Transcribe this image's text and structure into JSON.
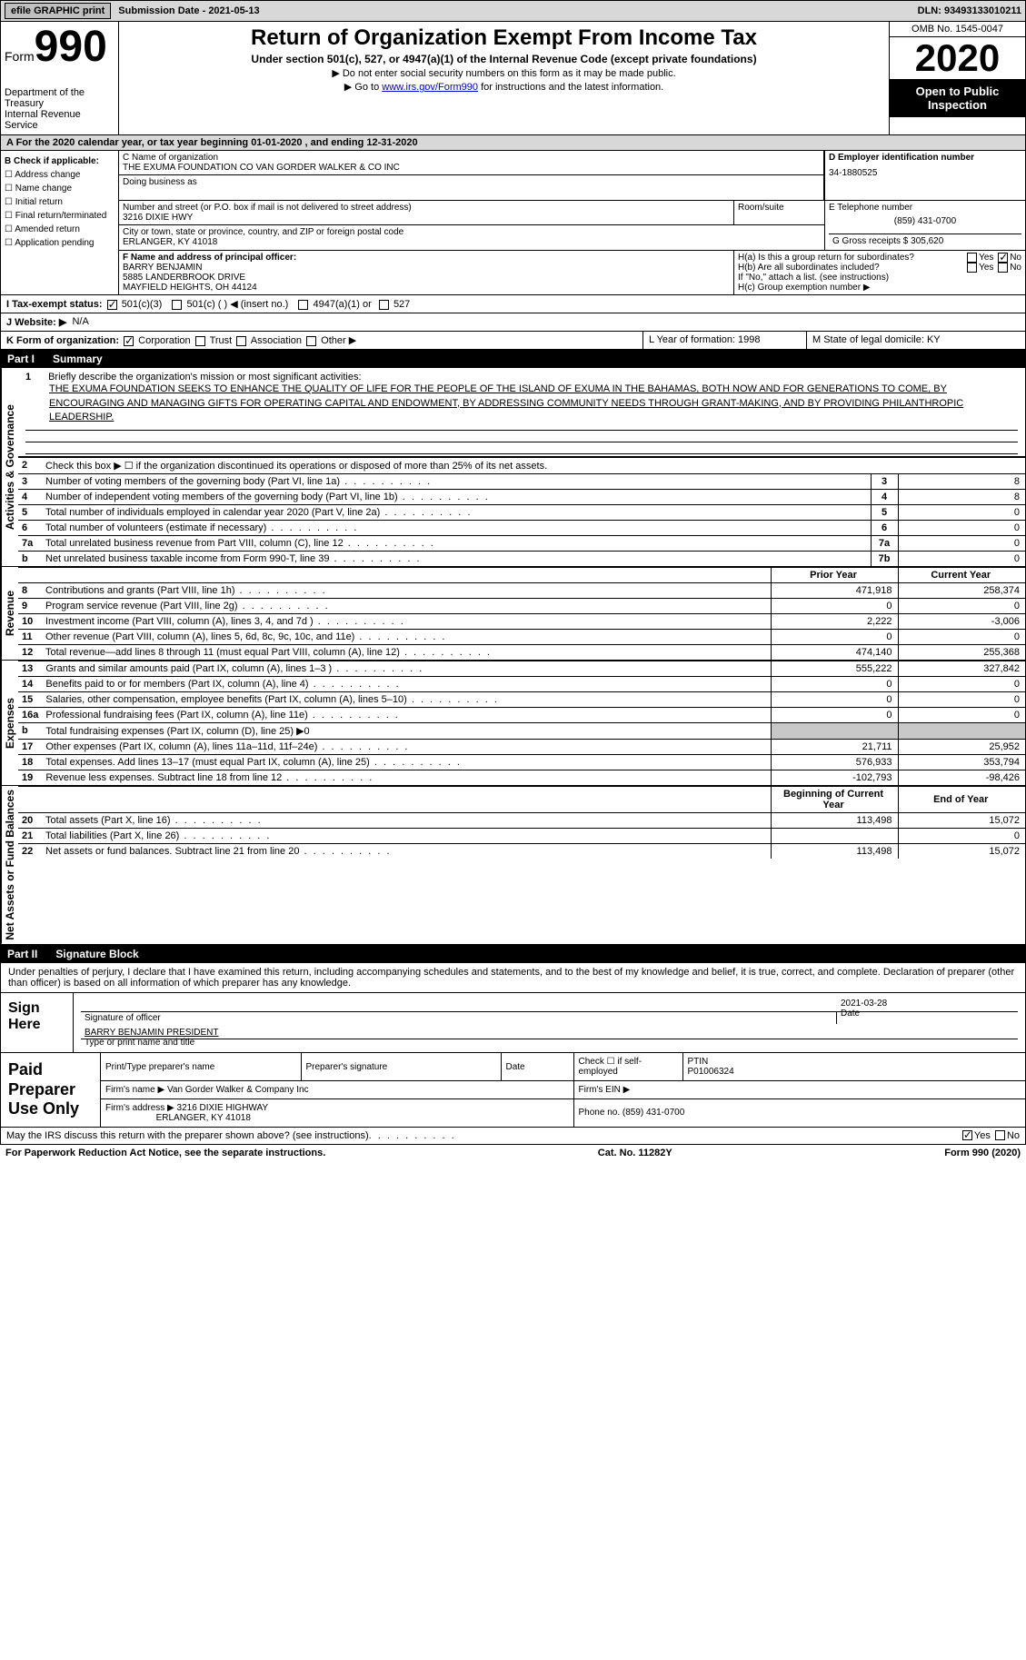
{
  "topbar": {
    "efile_label": "efile GRAPHIC print",
    "submission_label": "Submission Date - 2021-05-13",
    "dln": "DLN: 93493133010211"
  },
  "header": {
    "form_word": "Form",
    "form_num": "990",
    "dept1": "Department of the Treasury",
    "dept2": "Internal Revenue Service",
    "title": "Return of Organization Exempt From Income Tax",
    "sub": "Under section 501(c), 527, or 4947(a)(1) of the Internal Revenue Code (except private foundations)",
    "note1": "▶ Do not enter social security numbers on this form as it may be made public.",
    "note2_pre": "▶ Go to ",
    "note2_link": "www.irs.gov/Form990",
    "note2_post": " for instructions and the latest information.",
    "omb": "OMB No. 1545-0047",
    "year": "2020",
    "inspect1": "Open to Public",
    "inspect2": "Inspection"
  },
  "period": "A For the 2020 calendar year, or tax year beginning 01-01-2020   , and ending 12-31-2020",
  "sectionB": {
    "heading": "B Check if applicable:",
    "items": [
      "☐ Address change",
      "☐ Name change",
      "☐ Initial return",
      "☐ Final return/terminated",
      "☐ Amended return",
      "☐ Application pending"
    ]
  },
  "sectionC": {
    "label": "C Name of organization",
    "name": "THE EXUMA FOUNDATION CO VAN GORDER WALKER & CO INC",
    "dba_label": "Doing business as",
    "street_label": "Number and street (or P.O. box if mail is not delivered to street address)",
    "street": "3216 DIXIE HWY",
    "room_label": "Room/suite",
    "city_label": "City or town, state or province, country, and ZIP or foreign postal code",
    "city": "ERLANGER, KY  41018"
  },
  "sectionD": {
    "label": "D Employer identification number",
    "ein": "34-1880525"
  },
  "sectionE": {
    "label": "E Telephone number",
    "phone": "(859) 431-0700"
  },
  "sectionG": {
    "label": "G Gross receipts $ 305,620"
  },
  "sectionF": {
    "label": "F  Name and address of principal officer:",
    "name": "BARRY BENJAMIN",
    "addr1": "5885 LANDERBROOK DRIVE",
    "addr2": "MAYFIELD HEIGHTS, OH  44124"
  },
  "sectionH": {
    "ha": "H(a)  Is this a group return for subordinates?",
    "hb": "H(b)  Are all subordinates included?",
    "hnote": "If \"No,\" attach a list. (see instructions)",
    "hc": "H(c)  Group exemption number ▶",
    "yes": "Yes",
    "no": "No"
  },
  "rowI": {
    "label": "I   Tax-exempt status:",
    "opts": [
      "501(c)(3)",
      "501(c) (  ) ◀ (insert no.)",
      "4947(a)(1) or",
      "527"
    ]
  },
  "rowJ": {
    "label": "J   Website: ▶",
    "val": "N/A"
  },
  "rowK": {
    "left_label": "K Form of organization:",
    "opts": [
      "Corporation",
      "Trust",
      "Association",
      "Other ▶"
    ],
    "mid": "L Year of formation: 1998",
    "right": "M State of legal domicile: KY"
  },
  "part1": {
    "num": "Part I",
    "title": "Summary"
  },
  "summary": {
    "line1_num": "1",
    "line1_label": "Briefly describe the organization's mission or most significant activities:",
    "mission": "THE EXUMA FOUNDATION SEEKS TO ENHANCE THE QUALITY OF LIFE FOR THE PEOPLE OF THE ISLAND OF EXUMA IN THE BAHAMAS, BOTH NOW AND FOR GENERATIONS TO COME, BY ENCOURAGING AND MANAGING GIFTS FOR OPERATING CAPITAL AND ENDOWMENT, BY ADDRESSING COMMUNITY NEEDS THROUGH GRANT-MAKING, AND BY PROVIDING PHILANTHROPIC LEADERSHIP.",
    "line2": "Check this box ▶ ☐  if the organization discontinued its operations or disposed of more than 25% of its net assets.",
    "gov_rows": [
      {
        "n": "3",
        "label": "Number of voting members of the governing body (Part VI, line 1a)",
        "box": "3",
        "val": "8"
      },
      {
        "n": "4",
        "label": "Number of independent voting members of the governing body (Part VI, line 1b)",
        "box": "4",
        "val": "8"
      },
      {
        "n": "5",
        "label": "Total number of individuals employed in calendar year 2020 (Part V, line 2a)",
        "box": "5",
        "val": "0"
      },
      {
        "n": "6",
        "label": "Total number of volunteers (estimate if necessary)",
        "box": "6",
        "val": "0"
      },
      {
        "n": "7a",
        "label": "Total unrelated business revenue from Part VIII, column (C), line 12",
        "box": "7a",
        "val": "0"
      },
      {
        "n": "b",
        "label": "Net unrelated business taxable income from Form 990-T, line 39",
        "box": "7b",
        "val": "0"
      }
    ],
    "col_prior": "Prior Year",
    "col_current": "Current Year",
    "rev_rows": [
      {
        "n": "8",
        "label": "Contributions and grants (Part VIII, line 1h)",
        "p": "471,918",
        "c": "258,374"
      },
      {
        "n": "9",
        "label": "Program service revenue (Part VIII, line 2g)",
        "p": "0",
        "c": "0"
      },
      {
        "n": "10",
        "label": "Investment income (Part VIII, column (A), lines 3, 4, and 7d )",
        "p": "2,222",
        "c": "-3,006"
      },
      {
        "n": "11",
        "label": "Other revenue (Part VIII, column (A), lines 5, 6d, 8c, 9c, 10c, and 11e)",
        "p": "0",
        "c": "0"
      },
      {
        "n": "12",
        "label": "Total revenue—add lines 8 through 11 (must equal Part VIII, column (A), line 12)",
        "p": "474,140",
        "c": "255,368"
      }
    ],
    "exp_rows": [
      {
        "n": "13",
        "label": "Grants and similar amounts paid (Part IX, column (A), lines 1–3 )",
        "p": "555,222",
        "c": "327,842"
      },
      {
        "n": "14",
        "label": "Benefits paid to or for members (Part IX, column (A), line 4)",
        "p": "0",
        "c": "0"
      },
      {
        "n": "15",
        "label": "Salaries, other compensation, employee benefits (Part IX, column (A), lines 5–10)",
        "p": "0",
        "c": "0"
      },
      {
        "n": "16a",
        "label": "Professional fundraising fees (Part IX, column (A), line 11e)",
        "p": "0",
        "c": "0"
      },
      {
        "n": "b",
        "label": "Total fundraising expenses (Part IX, column (D), line 25) ▶0",
        "p": "",
        "c": "",
        "grey": true
      },
      {
        "n": "17",
        "label": "Other expenses (Part IX, column (A), lines 11a–11d, 11f–24e)",
        "p": "21,711",
        "c": "25,952"
      },
      {
        "n": "18",
        "label": "Total expenses. Add lines 13–17 (must equal Part IX, column (A), line 25)",
        "p": "576,933",
        "c": "353,794"
      },
      {
        "n": "19",
        "label": "Revenue less expenses. Subtract line 18 from line 12",
        "p": "-102,793",
        "c": "-98,426"
      }
    ],
    "col_begin": "Beginning of Current Year",
    "col_end": "End of Year",
    "na_rows": [
      {
        "n": "20",
        "label": "Total assets (Part X, line 16)",
        "p": "113,498",
        "c": "15,072"
      },
      {
        "n": "21",
        "label": "Total liabilities (Part X, line 26)",
        "p": "",
        "c": "0"
      },
      {
        "n": "22",
        "label": "Net assets or fund balances. Subtract line 21 from line 20",
        "p": "113,498",
        "c": "15,072"
      }
    ],
    "side_gov": "Activities & Governance",
    "side_rev": "Revenue",
    "side_exp": "Expenses",
    "side_na": "Net Assets or Fund Balances"
  },
  "part2": {
    "num": "Part II",
    "title": "Signature Block"
  },
  "sig": {
    "decl": "Under penalties of perjury, I declare that I have examined this return, including accompanying schedules and statements, and to the best of my knowledge and belief, it is true, correct, and complete. Declaration of preparer (other than officer) is based on all information of which preparer has any knowledge.",
    "sign_here": "Sign Here",
    "sig_of_officer": "Signature of officer",
    "date_lbl": "Date",
    "date_val": "2021-03-28",
    "name_title": "BARRY BENJAMIN  PRESIDENT",
    "type_name": "Type or print name and title"
  },
  "prep": {
    "title": "Paid Preparer Use Only",
    "h1": "Print/Type preparer's name",
    "h2": "Preparer's signature",
    "h3": "Date",
    "h4_a": "Check ☐ if self-employed",
    "h4_b": "PTIN",
    "ptin": "P01006324",
    "firm_name_lbl": "Firm's name    ▶",
    "firm_name": "Van Gorder Walker & Company Inc",
    "firm_ein_lbl": "Firm's EIN ▶",
    "firm_addr_lbl": "Firm's address ▶",
    "firm_addr1": "3216 DIXIE HIGHWAY",
    "firm_addr2": "ERLANGER, KY  41018",
    "phone_lbl": "Phone no. (859) 431-0700"
  },
  "footer": {
    "discuss": "May the IRS discuss this return with the preparer shown above? (see instructions)",
    "yes": "Yes",
    "no": "No",
    "paperwork": "For Paperwork Reduction Act Notice, see the separate instructions.",
    "cat": "Cat. No. 11282Y",
    "form": "Form 990 (2020)"
  }
}
